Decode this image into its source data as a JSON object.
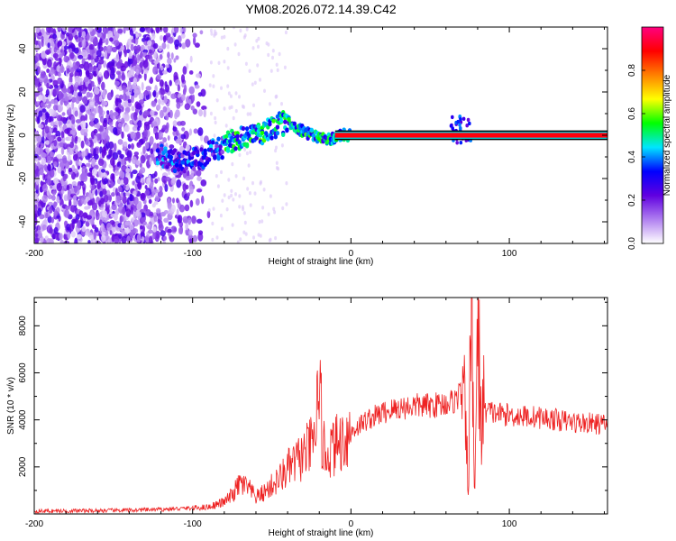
{
  "chart_data": [
    {
      "type": "heatmap",
      "title": "YM08.2026.072.14.39.C42",
      "xlabel": "Height of straight line (km)",
      "ylabel": "Frequency (Hz)",
      "xlim": [
        -200,
        162
      ],
      "ylim": [
        -50,
        50
      ],
      "x_ticks": [
        -200,
        -100,
        0,
        100
      ],
      "y_ticks": [
        -40,
        -20,
        0,
        20,
        40
      ],
      "colorbar": {
        "label": "Normalized spectral amplitude",
        "range": [
          0,
          1
        ],
        "ticks": [
          0.0,
          0.2,
          0.4,
          0.6,
          0.8
        ],
        "colormap": [
          "#ffffff",
          "#b07ff0",
          "#6000e0",
          "#0000ff",
          "#00e5ff",
          "#00ff00",
          "#ffff00",
          "#ff8000",
          "#ff0000",
          "#ff0080"
        ]
      },
      "ridge": {
        "x": [
          -120,
          -110,
          -100,
          -90,
          -80,
          -70,
          -60,
          -50,
          -45,
          -40,
          -35,
          -30,
          -25,
          -20,
          -15,
          -10,
          -5,
          0,
          20,
          40,
          60,
          65,
          70,
          75,
          80,
          90,
          100,
          162
        ],
        "y": [
          -10,
          -12,
          -12,
          -8,
          -5,
          -2,
          0,
          3,
          5,
          6,
          4,
          2,
          0,
          -1,
          -2,
          -1,
          0,
          0,
          0,
          0,
          0,
          1,
          2,
          0,
          0,
          0,
          0,
          0
        ]
      }
    },
    {
      "type": "line",
      "xlabel": "Height of straight line (km)",
      "ylabel": "SNR (10 * v/v)",
      "xlim": [
        -200,
        162
      ],
      "ylim": [
        0,
        9200
      ],
      "x_ticks": [
        -200,
        -100,
        0,
        100
      ],
      "y_ticks": [
        2000,
        4000,
        6000,
        8000
      ],
      "series": [
        {
          "name": "SNR",
          "color": "#ee2222",
          "x": [
            -200,
            -180,
            -160,
            -140,
            -120,
            -100,
            -90,
            -80,
            -75,
            -70,
            -65,
            -60,
            -55,
            -50,
            -45,
            -40,
            -35,
            -30,
            -25,
            -22,
            -20,
            -18,
            -15,
            -10,
            -5,
            0,
            10,
            20,
            30,
            40,
            50,
            60,
            65,
            70,
            72,
            74,
            76,
            78,
            80,
            82,
            85,
            90,
            100,
            120,
            140,
            162
          ],
          "y": [
            120,
            130,
            140,
            160,
            190,
            250,
            300,
            500,
            800,
            1300,
            1100,
            700,
            900,
            1200,
            1500,
            1900,
            2200,
            2500,
            2900,
            3200,
            4000,
            2800,
            2600,
            2900,
            3200,
            3500,
            4000,
            4300,
            4500,
            4600,
            4600,
            4700,
            4800,
            5200,
            4000,
            1200,
            8500,
            1000,
            7800,
            4300,
            4400,
            4300,
            4200,
            4100,
            3900,
            3800
          ]
        }
      ]
    }
  ]
}
